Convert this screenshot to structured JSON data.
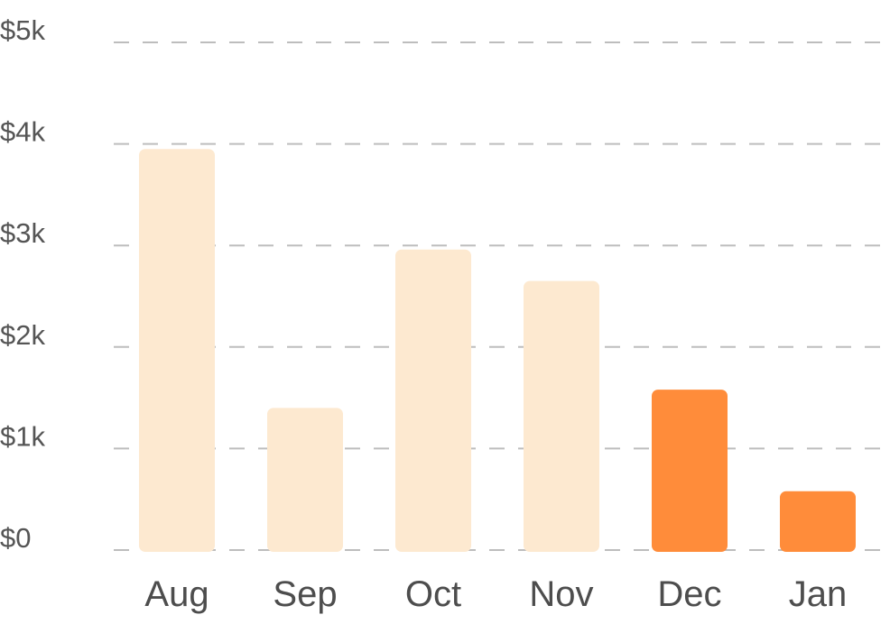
{
  "chart_data": {
    "type": "bar",
    "categories": [
      "Aug",
      "Sep",
      "Oct",
      "Nov",
      "Dec",
      "Jan"
    ],
    "values": [
      3950,
      1400,
      2960,
      2650,
      1580,
      580
    ],
    "highlighted": [
      false,
      false,
      false,
      false,
      true,
      true
    ],
    "ylim": [
      0,
      5000
    ],
    "yticks": [
      0,
      1000,
      2000,
      3000,
      4000,
      5000
    ],
    "ytick_labels": [
      "$0",
      "$1k",
      "$2k",
      "$3k",
      "$4k",
      "$5k"
    ],
    "grid": true,
    "colors": {
      "bar": "#fde9d0",
      "bar_highlight": "#ff8c3a",
      "grid": "#bdbdbd",
      "tick_text": "#555555"
    }
  }
}
